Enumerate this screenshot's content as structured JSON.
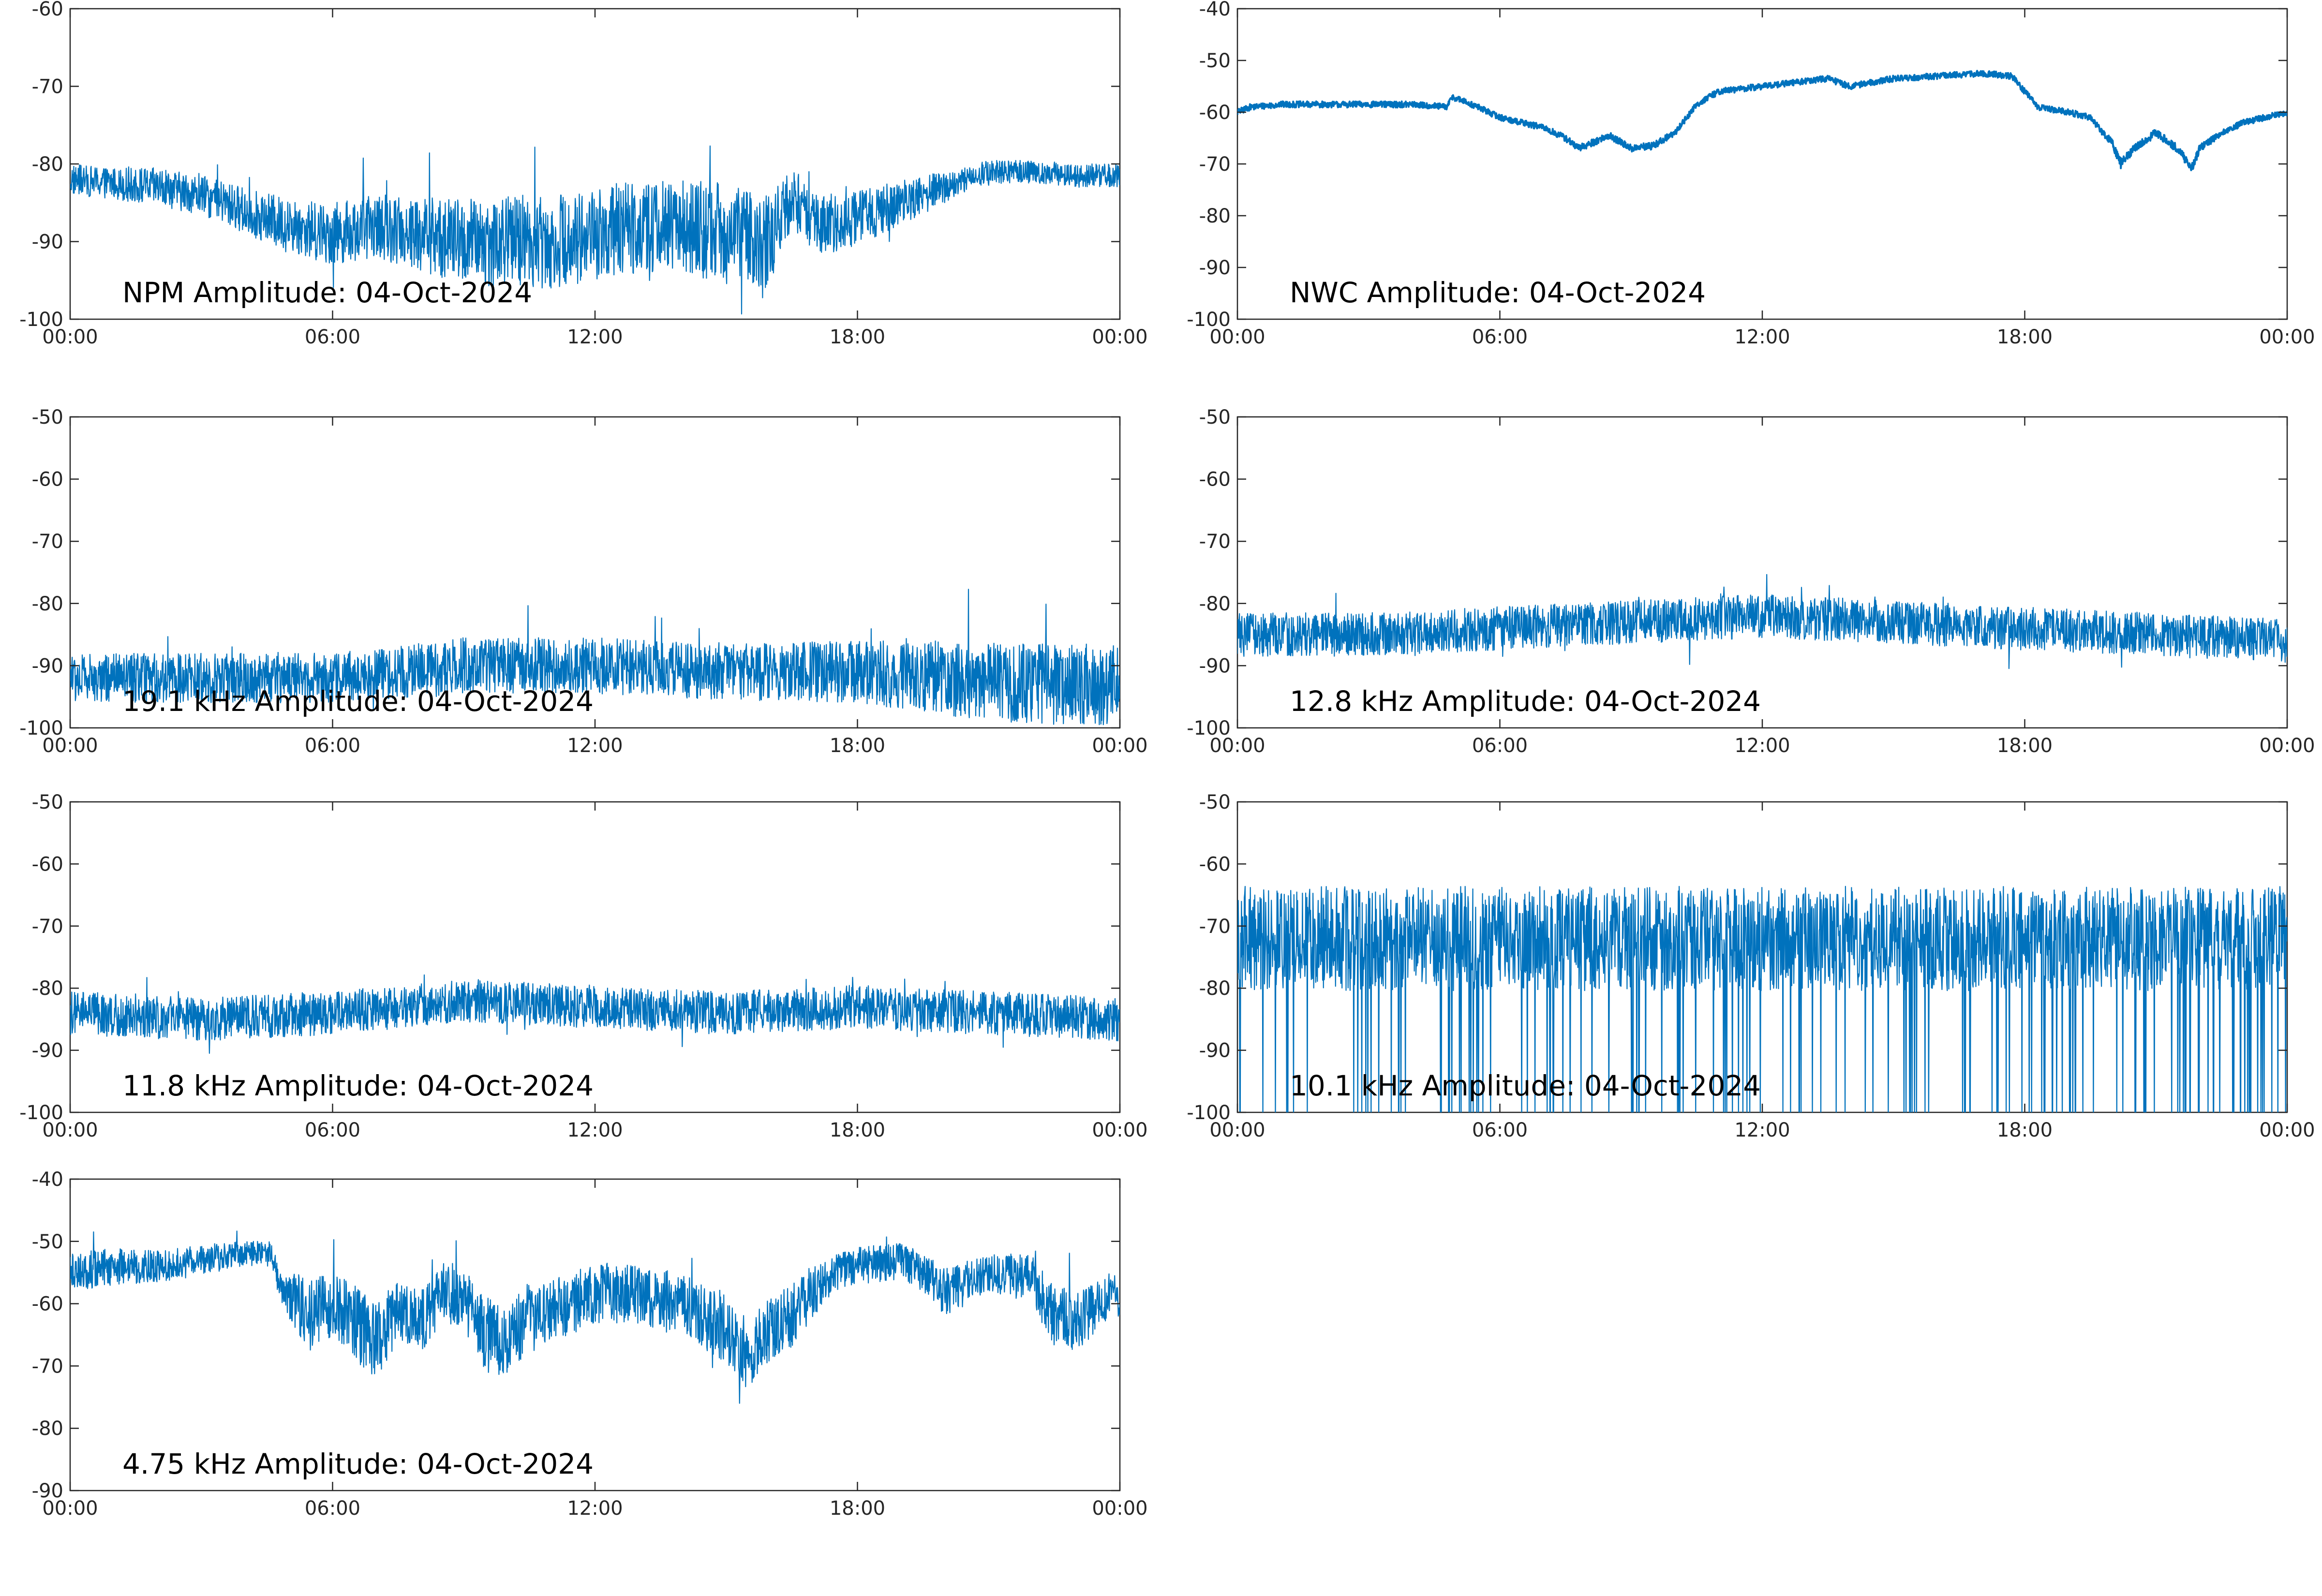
{
  "colors": {
    "trace": "#0072BD",
    "axes": "#262626",
    "background": "#ffffff"
  },
  "chart_data": [
    {
      "type": "line",
      "title": "NPM Amplitude: 04-Oct-2024",
      "xlabel": "",
      "ylabel": "",
      "xlim": [
        0,
        24
      ],
      "ylim": [
        -100,
        -60
      ],
      "x_ticks": [
        0,
        6,
        12,
        18,
        24
      ],
      "x_tick_labels": [
        "00:00",
        "06:00",
        "12:00",
        "18:00",
        "00:00"
      ],
      "y_ticks": [
        -100,
        -90,
        -80,
        -70,
        -60
      ],
      "y_tick_labels": [
        "-100",
        "-90",
        "-80",
        "-70",
        "-60"
      ],
      "grid": false,
      "series": [
        {
          "x": [
            0,
            1,
            2,
            3,
            4,
            5,
            6,
            7,
            8,
            9,
            10,
            11,
            12,
            13,
            14,
            15,
            16,
            16.5,
            17,
            18,
            19,
            20,
            21,
            22,
            23,
            24
          ],
          "y_center": [
            -82,
            -82.5,
            -83,
            -84,
            -86,
            -88,
            -89,
            -88,
            -89,
            -90,
            -90,
            -90,
            -89,
            -88,
            -88,
            -89,
            -90,
            -84,
            -88,
            -87,
            -85,
            -83,
            -81,
            -81,
            -81.5,
            -81.5
          ],
          "y_spread": [
            2,
            2,
            2.5,
            2.5,
            3,
            3.5,
            4,
            4,
            5,
            5.5,
            6,
            6,
            6,
            6,
            6,
            6.5,
            6,
            4,
            4,
            3.5,
            3,
            2,
            1.5,
            1.5,
            1.5,
            1.5
          ]
        }
      ]
    },
    {
      "type": "line",
      "title": "NWC Amplitude: 04-Oct-2024",
      "xlabel": "",
      "ylabel": "",
      "xlim": [
        0,
        24
      ],
      "ylim": [
        -100,
        -40
      ],
      "x_ticks": [
        0,
        6,
        12,
        18,
        24
      ],
      "x_tick_labels": [
        "00:00",
        "06:00",
        "12:00",
        "18:00",
        "00:00"
      ],
      "y_ticks": [
        -100,
        -90,
        -80,
        -70,
        -60,
        -50,
        -40
      ],
      "y_tick_labels": [
        "-100",
        "-90",
        "-80",
        "-70",
        "-60",
        "-50",
        "-40"
      ],
      "grid": false,
      "series": [
        {
          "x": [
            0,
            0.3,
            1,
            2,
            3,
            4,
            4.8,
            4.9,
            5.5,
            6,
            7,
            7.5,
            7.8,
            8.5,
            9,
            9.5,
            10,
            10.5,
            11,
            12,
            13,
            13.5,
            14,
            15,
            16,
            17,
            17.7,
            18.3,
            19,
            19.5,
            20,
            20.2,
            20.5,
            21,
            21.5,
            21.8,
            22,
            22.5,
            23,
            24
          ],
          "y_center": [
            -60,
            -59,
            -58.5,
            -58.5,
            -58.5,
            -58.5,
            -59,
            -57,
            -59,
            -61,
            -63,
            -65,
            -67,
            -64.5,
            -67,
            -66.5,
            -64,
            -58.5,
            -56,
            -55,
            -54,
            -53.5,
            -55,
            -53.5,
            -53,
            -52.5,
            -53,
            -59,
            -60,
            -61,
            -66,
            -70,
            -67,
            -64,
            -67,
            -71,
            -67,
            -64,
            -62,
            -60
          ],
          "y_spread": [
            0.6,
            0.6,
            0.6,
            0.6,
            0.6,
            0.6,
            0.6,
            0.6,
            0.6,
            0.6,
            0.6,
            0.7,
            0.7,
            0.7,
            0.7,
            0.7,
            0.6,
            0.6,
            0.6,
            0.6,
            0.6,
            0.6,
            0.6,
            0.6,
            0.6,
            0.6,
            0.6,
            0.6,
            0.6,
            0.6,
            0.8,
            1,
            0.8,
            0.8,
            0.8,
            1,
            0.8,
            0.6,
            0.6,
            0.6
          ]
        }
      ]
    },
    {
      "type": "line",
      "title": "19.1 kHz Amplitude: 04-Oct-2024",
      "xlabel": "",
      "ylabel": "",
      "xlim": [
        0,
        24
      ],
      "ylim": [
        -100,
        -50
      ],
      "x_ticks": [
        0,
        6,
        12,
        18,
        24
      ],
      "x_tick_labels": [
        "00:00",
        "06:00",
        "12:00",
        "18:00",
        "00:00"
      ],
      "y_ticks": [
        -100,
        -90,
        -80,
        -70,
        -60,
        -50
      ],
      "y_tick_labels": [
        "-100",
        "-90",
        "-80",
        "-70",
        "-60",
        "-50"
      ],
      "grid": false,
      "series": [
        {
          "x": [
            0,
            3,
            6,
            9,
            12,
            15,
            18,
            20,
            22,
            24
          ],
          "y_center": [
            -92,
            -92,
            -92,
            -90,
            -90,
            -91,
            -91,
            -92,
            -93,
            -93
          ],
          "y_spread": [
            4,
            4,
            4,
            4.5,
            4.5,
            4.5,
            5,
            6,
            6.5,
            6.5
          ]
        }
      ]
    },
    {
      "type": "line",
      "title": "12.8 kHz Amplitude: 04-Oct-2024",
      "xlabel": "",
      "ylabel": "",
      "xlim": [
        0,
        24
      ],
      "ylim": [
        -100,
        -50
      ],
      "x_ticks": [
        0,
        6,
        12,
        18,
        24
      ],
      "x_tick_labels": [
        "00:00",
        "06:00",
        "12:00",
        "18:00",
        "00:00"
      ],
      "y_ticks": [
        -100,
        -90,
        -80,
        -70,
        -60,
        -50
      ],
      "y_tick_labels": [
        "-100",
        "-90",
        "-80",
        "-70",
        "-60",
        "-50"
      ],
      "grid": false,
      "series": [
        {
          "x": [
            0,
            3,
            6,
            9,
            12,
            15,
            18,
            21,
            24
          ],
          "y_center": [
            -85,
            -85,
            -84,
            -83,
            -82,
            -83,
            -84,
            -85,
            -86
          ],
          "y_spread": [
            3.5,
            3.5,
            3.5,
            3.5,
            3.5,
            3.5,
            3.5,
            3.5,
            3.5
          ]
        }
      ]
    },
    {
      "type": "line",
      "title": "11.8 kHz Amplitude: 04-Oct-2024",
      "xlabel": "",
      "ylabel": "",
      "xlim": [
        0,
        24
      ],
      "ylim": [
        -100,
        -50
      ],
      "x_ticks": [
        0,
        6,
        12,
        18,
        24
      ],
      "x_tick_labels": [
        "00:00",
        "06:00",
        "12:00",
        "18:00",
        "00:00"
      ],
      "y_ticks": [
        -100,
        -90,
        -80,
        -70,
        -60,
        -50
      ],
      "y_tick_labels": [
        "-100",
        "-90",
        "-80",
        "-70",
        "-60",
        "-50"
      ],
      "grid": false,
      "series": [
        {
          "x": [
            0,
            3,
            6,
            9,
            12,
            15,
            18,
            21,
            24
          ],
          "y_center": [
            -84,
            -85,
            -84,
            -82,
            -83,
            -84,
            -83,
            -84,
            -85
          ],
          "y_spread": [
            3.5,
            3.5,
            3.5,
            3.5,
            3.5,
            3.5,
            3.5,
            3.5,
            3.5
          ]
        }
      ]
    },
    {
      "type": "line",
      "title": "10.1 kHz Amplitude: 04-Oct-2024",
      "xlabel": "",
      "ylabel": "",
      "xlim": [
        0,
        24
      ],
      "ylim": [
        -100,
        -50
      ],
      "x_ticks": [
        0,
        6,
        12,
        18,
        24
      ],
      "x_tick_labels": [
        "00:00",
        "06:00",
        "12:00",
        "18:00",
        "00:00"
      ],
      "y_ticks": [
        -100,
        -90,
        -80,
        -70,
        -60,
        -50
      ],
      "y_tick_labels": [
        "-100",
        "-90",
        "-80",
        "-70",
        "-60",
        "-50"
      ],
      "grid": false,
      "series": [
        {
          "x": [
            0,
            6,
            12,
            18,
            24
          ],
          "y_center": [
            -72,
            -72,
            -72,
            -72,
            -72
          ],
          "y_spread": [
            6,
            6,
            6,
            6,
            6
          ]
        }
      ]
    },
    {
      "type": "line",
      "title": "4.75 kHz Amplitude: 04-Oct-2024",
      "xlabel": "",
      "ylabel": "",
      "xlim": [
        0,
        24
      ],
      "ylim": [
        -90,
        -40
      ],
      "x_ticks": [
        0,
        6,
        12,
        18,
        24
      ],
      "x_tick_labels": [
        "00:00",
        "06:00",
        "12:00",
        "18:00",
        "00:00"
      ],
      "y_ticks": [
        -90,
        -80,
        -70,
        -60,
        -50,
        -40
      ],
      "y_tick_labels": [
        "-90",
        "-80",
        "-70",
        "-60",
        "-50",
        "-40"
      ],
      "grid": false,
      "series": [
        {
          "x": [
            0,
            1,
            2,
            3,
            4,
            4.6,
            4.8,
            5.5,
            6,
            6.5,
            7,
            7.5,
            8,
            8.5,
            9,
            9.5,
            10,
            10.5,
            11,
            11.5,
            12,
            13,
            14,
            15,
            15.5,
            16,
            16.5,
            17,
            17.5,
            18,
            19,
            19.5,
            20,
            21,
            22,
            22.5,
            23,
            23.5,
            24
          ],
          "y_center": [
            -55,
            -54,
            -54,
            -53,
            -52,
            -52,
            -57,
            -62,
            -60,
            -63,
            -66,
            -61,
            -63,
            -58,
            -59,
            -65,
            -66,
            -62,
            -61,
            -60,
            -58,
            -59,
            -60,
            -64,
            -68,
            -64,
            -62,
            -58,
            -55,
            -54,
            -53,
            -55,
            -58,
            -55,
            -56,
            -62,
            -63,
            -60,
            -58
          ],
          "y_spread": [
            3,
            3,
            2.5,
            2.5,
            2,
            2,
            3,
            6,
            5,
            6,
            6,
            5,
            5,
            5,
            5,
            6,
            6,
            6,
            5,
            5,
            5,
            5,
            5,
            6,
            6,
            5,
            5,
            4,
            3,
            3,
            3,
            3,
            4,
            3,
            4,
            5,
            5,
            4,
            4
          ]
        }
      ]
    }
  ]
}
